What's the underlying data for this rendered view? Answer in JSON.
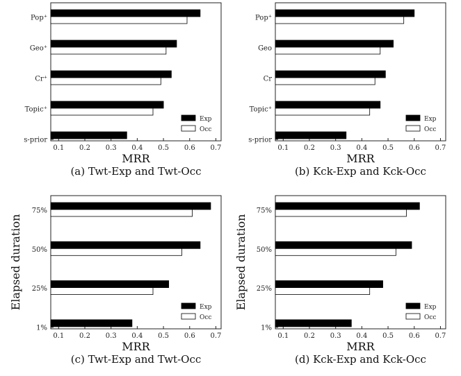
{
  "chart_data": [
    {
      "type": "bar",
      "caption": "(a) Twt-Exp and Twt-Occ",
      "xlabel": "MRR",
      "ylabel": "",
      "xlim": [
        0.07,
        0.72
      ],
      "xticks": [
        "0.1",
        "0.2",
        "0.3",
        "0.4",
        "0.5",
        "0.6",
        "0.7"
      ],
      "categories": [
        "Pop⁺",
        "Geo⁺",
        "Cr⁺",
        "Topic⁺",
        "s-prior"
      ],
      "series": [
        {
          "name": "Exp",
          "values": [
            0.64,
            0.55,
            0.53,
            0.5,
            0.36
          ]
        },
        {
          "name": "Occ",
          "values": [
            0.59,
            0.51,
            0.49,
            0.46,
            null
          ]
        }
      ],
      "legend_position": "bottom-right"
    },
    {
      "type": "bar",
      "caption": "(b) Kck-Exp and Kck-Occ",
      "xlabel": "MRR",
      "ylabel": "",
      "xlim": [
        0.07,
        0.72
      ],
      "xticks": [
        "0.1",
        "0.2",
        "0.3",
        "0.4",
        "0.5",
        "0.6",
        "0.7"
      ],
      "categories": [
        "Pop⁺",
        "Geo",
        "Cr",
        "Topic⁺",
        "s-prior"
      ],
      "series": [
        {
          "name": "Exp",
          "values": [
            0.6,
            0.52,
            0.49,
            0.47,
            0.34
          ]
        },
        {
          "name": "Occ",
          "values": [
            0.56,
            0.47,
            0.45,
            0.43,
            null
          ]
        }
      ],
      "legend_position": "bottom-right"
    },
    {
      "type": "bar",
      "caption": "(c) Twt-Exp and Twt-Occ",
      "xlabel": "MRR",
      "ylabel": "Elapsed duration",
      "xlim": [
        0.07,
        0.72
      ],
      "xticks": [
        "0.1",
        "0.2",
        "0.3",
        "0.4",
        "0.5",
        "0.6",
        "0.7"
      ],
      "categories": [
        "75%",
        "50%",
        "25%",
        "1%"
      ],
      "series": [
        {
          "name": "Exp",
          "values": [
            0.68,
            0.64,
            0.52,
            0.38
          ]
        },
        {
          "name": "Occ",
          "values": [
            0.61,
            0.57,
            0.46,
            null
          ]
        }
      ],
      "legend_position": "bottom-right"
    },
    {
      "type": "bar",
      "caption": "(d) Kck-Exp and Kck-Occ",
      "xlabel": "MRR",
      "ylabel": "Elapsed duration",
      "xlim": [
        0.07,
        0.72
      ],
      "xticks": [
        "0.1",
        "0.2",
        "0.3",
        "0.4",
        "0.5",
        "0.6",
        "0.7"
      ],
      "categories": [
        "75%",
        "50%",
        "25%",
        "1%"
      ],
      "series": [
        {
          "name": "Exp",
          "values": [
            0.62,
            0.59,
            0.48,
            0.36
          ]
        },
        {
          "name": "Occ",
          "values": [
            0.57,
            0.53,
            0.43,
            null
          ]
        }
      ],
      "legend_position": "bottom-right"
    }
  ]
}
